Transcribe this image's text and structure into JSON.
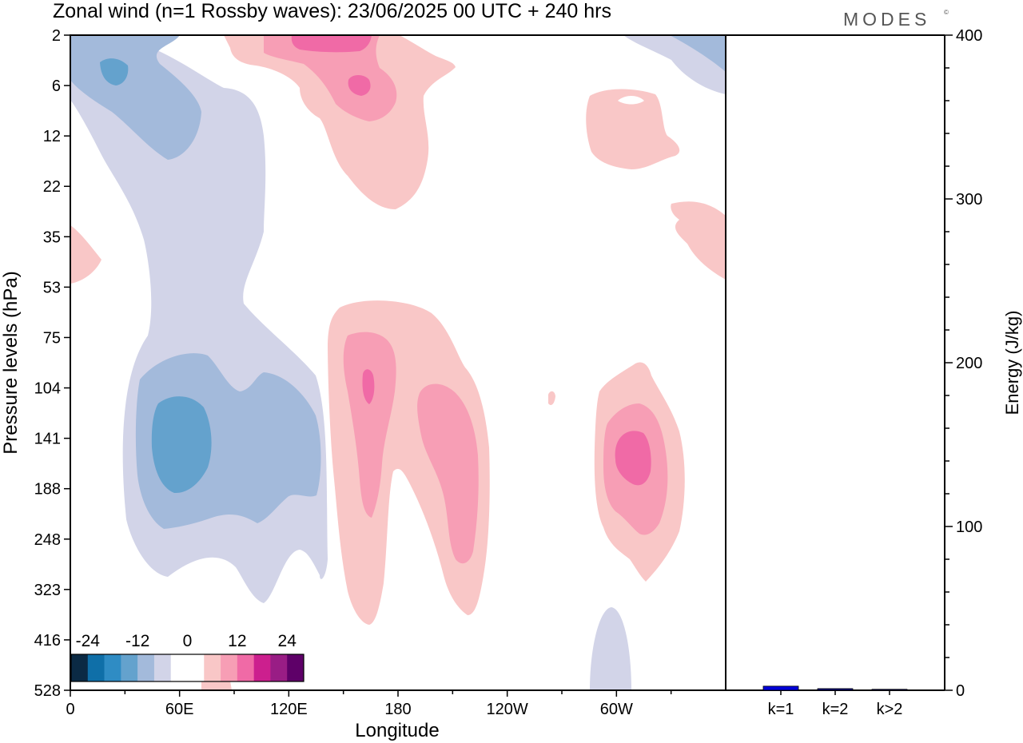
{
  "header": {
    "title": "Zonal wind (n=1 Rossby waves):  23/06/2025  00 UTC  + 240 hrs",
    "brand": "MODES",
    "brand_mark": "©"
  },
  "chart_data": [
    {
      "type": "heatmap",
      "xlabel": "Longitude",
      "ylabel": "Pressure levels (hPa)",
      "x_ticks": [
        "0",
        "60E",
        "120E",
        "180",
        "120W",
        "60W"
      ],
      "x_tick_values": [
        0,
        60,
        120,
        180,
        240,
        300
      ],
      "xlim": [
        0,
        360
      ],
      "y_ticks": [
        "2",
        "6",
        "12",
        "22",
        "35",
        "53",
        "75",
        "104",
        "141",
        "188",
        "248",
        "323",
        "416",
        "528"
      ],
      "y_scale": "category",
      "colorbar": {
        "tick_labels": [
          "-24",
          "-12",
          "0",
          "12",
          "24"
        ],
        "levels": [
          "#0b2a44",
          "#0f6fa8",
          "#2f8cc4",
          "#64a2cd",
          "#a3badb",
          "#d2d4e8",
          "#ffffff",
          "#ffffff",
          "#f9c7c7",
          "#f79eb5",
          "#f06aa6",
          "#cc1f8e",
          "#991d85",
          "#5e0068"
        ],
        "placement": "bottom-left"
      }
    },
    {
      "type": "bar",
      "categories": [
        "k=1",
        "k=2",
        "k>2"
      ],
      "values": [
        2.5,
        1,
        0.6
      ],
      "ylabel": "Energy (J/kg)",
      "ylim": [
        0,
        400
      ],
      "y_ticks": [
        0,
        100,
        200,
        300,
        400
      ],
      "y_axis_side": "right",
      "bar_colors": [
        "#0000d8",
        "#000080",
        "#000060"
      ]
    }
  ]
}
